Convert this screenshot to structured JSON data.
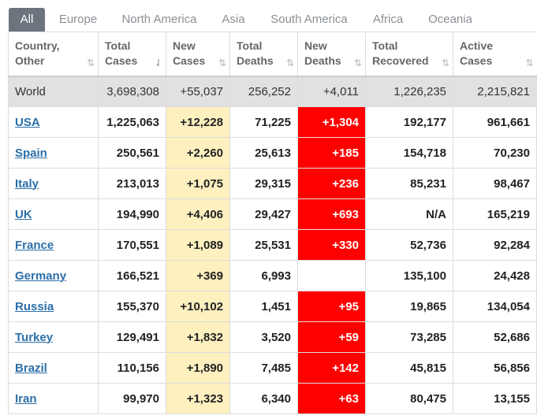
{
  "tabs": [
    "All",
    "Europe",
    "North America",
    "Asia",
    "South America",
    "Africa",
    "Oceania"
  ],
  "active_tab": "All",
  "columns": [
    {
      "line1": "Country,",
      "line2": "Other"
    },
    {
      "line1": "Total",
      "line2": "Cases"
    },
    {
      "line1": "New",
      "line2": "Cases"
    },
    {
      "line1": "Total",
      "line2": "Deaths"
    },
    {
      "line1": "New",
      "line2": "Deaths"
    },
    {
      "line1": "Total",
      "line2": "Recovered"
    },
    {
      "line1": "Active",
      "line2": "Cases"
    }
  ],
  "sort_icons": {
    "default": "⇅",
    "active": "⇃"
  },
  "colors": {
    "new_cases_bg": "#fff0c0",
    "new_deaths_bg": "#ff0000",
    "world_row_bg": "#e1e1e1",
    "link": "#2b6fa8"
  },
  "rows": [
    {
      "country": "World",
      "total_cases": "3,698,308",
      "new_cases": "+55,037",
      "total_deaths": "256,252",
      "new_deaths": "+4,011",
      "total_recovered": "1,226,235",
      "active_cases": "2,215,821"
    },
    {
      "country": "USA",
      "total_cases": "1,225,063",
      "new_cases": "+12,228",
      "total_deaths": "71,225",
      "new_deaths": "+1,304",
      "total_recovered": "192,177",
      "active_cases": "961,661"
    },
    {
      "country": "Spain",
      "total_cases": "250,561",
      "new_cases": "+2,260",
      "total_deaths": "25,613",
      "new_deaths": "+185",
      "total_recovered": "154,718",
      "active_cases": "70,230"
    },
    {
      "country": "Italy",
      "total_cases": "213,013",
      "new_cases": "+1,075",
      "total_deaths": "29,315",
      "new_deaths": "+236",
      "total_recovered": "85,231",
      "active_cases": "98,467"
    },
    {
      "country": "UK",
      "total_cases": "194,990",
      "new_cases": "+4,406",
      "total_deaths": "29,427",
      "new_deaths": "+693",
      "total_recovered": "N/A",
      "active_cases": "165,219"
    },
    {
      "country": "France",
      "total_cases": "170,551",
      "new_cases": "+1,089",
      "total_deaths": "25,531",
      "new_deaths": "+330",
      "total_recovered": "52,736",
      "active_cases": "92,284"
    },
    {
      "country": "Germany",
      "total_cases": "166,521",
      "new_cases": "+369",
      "total_deaths": "6,993",
      "new_deaths": "",
      "total_recovered": "135,100",
      "active_cases": "24,428"
    },
    {
      "country": "Russia",
      "total_cases": "155,370",
      "new_cases": "+10,102",
      "total_deaths": "1,451",
      "new_deaths": "+95",
      "total_recovered": "19,865",
      "active_cases": "134,054"
    },
    {
      "country": "Turkey",
      "total_cases": "129,491",
      "new_cases": "+1,832",
      "total_deaths": "3,520",
      "new_deaths": "+59",
      "total_recovered": "73,285",
      "active_cases": "52,686"
    },
    {
      "country": "Brazil",
      "total_cases": "110,156",
      "new_cases": "+1,890",
      "total_deaths": "7,485",
      "new_deaths": "+142",
      "total_recovered": "45,815",
      "active_cases": "56,856"
    },
    {
      "country": "Iran",
      "total_cases": "99,970",
      "new_cases": "+1,323",
      "total_deaths": "6,340",
      "new_deaths": "+63",
      "total_recovered": "80,475",
      "active_cases": "13,155"
    }
  ]
}
